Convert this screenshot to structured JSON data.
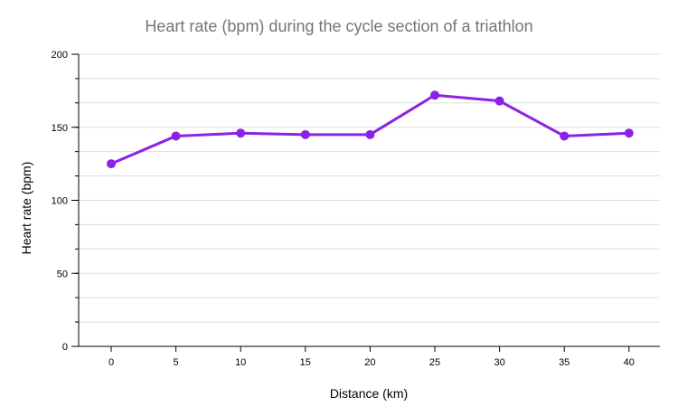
{
  "chart_data": {
    "type": "line",
    "title": "Heart rate (bpm) during the cycle section of a triathlon",
    "xlabel": "Distance (km)",
    "ylabel": "Heart rate (bpm)",
    "x": [
      0,
      5,
      10,
      15,
      20,
      25,
      30,
      35,
      40
    ],
    "series": [
      {
        "values": [
          125,
          144,
          146,
          145,
          145,
          172,
          168,
          144,
          146
        ],
        "color": "#8b22e6"
      }
    ],
    "xticks": [
      "0",
      "5",
      "10",
      "15",
      "20",
      "25",
      "30",
      "35",
      "40"
    ],
    "yticks": [
      "0",
      "50",
      "100",
      "150",
      "200"
    ],
    "ylim": [
      0,
      200
    ],
    "y_minor_step": 16.67,
    "grid": true,
    "legend": "none",
    "colors": {
      "title": "#757575",
      "grid": "#dddddd",
      "axis": "#000000",
      "line": "#8b22e6"
    }
  }
}
